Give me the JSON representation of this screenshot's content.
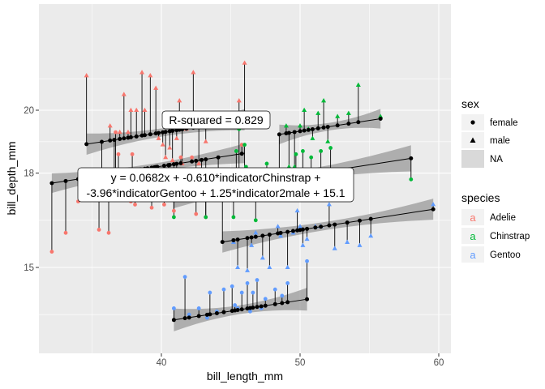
{
  "chart_data": {
    "type": "scatter",
    "xlabel": "bill_length_mm",
    "ylabel": "bill_depth_mm",
    "xlim": [
      31.2,
      60.5
    ],
    "ylim": [
      12.6,
      22.0
    ],
    "x_ticks": [
      40,
      50,
      60
    ],
    "y_ticks": [
      15,
      18,
      20
    ],
    "x_tick_labels": [
      "40",
      "50",
      "60"
    ],
    "y_tick_labels": [
      "15",
      "18",
      "20"
    ],
    "grid": true,
    "annotations": {
      "r_squared": "R-squared = 0.829",
      "equation_line1": "y = 0.0682x + -0.610*indicatorChinstrap +",
      "equation_line2": "-3.96*indicatorGentoo + 1.25*indicator2male + 15.1"
    },
    "legend_sex": {
      "title": "sex",
      "entries": [
        "female",
        "male",
        "NA"
      ]
    },
    "legend_species": {
      "title": "species",
      "entries": [
        {
          "label": "Adelie",
          "color": "#F8766D"
        },
        {
          "label": "Chinstrap",
          "color": "#00BA38"
        },
        {
          "label": "Gentoo",
          "color": "#619CFF"
        }
      ]
    },
    "fit_lines": [
      {
        "name": "Adelie female",
        "x": [
          32.1,
          46.0
        ],
        "y": [
          17.68,
          18.63
        ],
        "se": 0.12
      },
      {
        "name": "Adelie male",
        "x": [
          34.6,
          46.0
        ],
        "y": [
          18.92,
          19.7
        ],
        "se": 0.13
      },
      {
        "name": "Chinstrap female",
        "x": [
          40.9,
          58.0
        ],
        "y": [
          17.3,
          18.47
        ],
        "se": 0.16
      },
      {
        "name": "Chinstrap male",
        "x": [
          48.5,
          55.8
        ],
        "y": [
          19.23,
          19.73
        ],
        "se": 0.12
      },
      {
        "name": "Gentoo female",
        "x": [
          40.9,
          50.5
        ],
        "y": [
          13.33,
          13.99
        ],
        "se": 0.14
      },
      {
        "name": "Gentoo male",
        "x": [
          44.4,
          59.6
        ],
        "y": [
          15.81,
          16.85
        ],
        "se": 0.13
      }
    ],
    "series": [
      {
        "name": "Adelie female",
        "species": "Adelie",
        "sex": "female",
        "points": [
          [
            32.1,
            15.5
          ],
          [
            33.1,
            16.1
          ],
          [
            34.0,
            17.1
          ],
          [
            35.0,
            17.9
          ],
          [
            35.5,
            16.2
          ],
          [
            36.0,
            17.9
          ],
          [
            36.2,
            16.1
          ],
          [
            36.5,
            18.0
          ],
          [
            36.7,
            19.3
          ],
          [
            36.9,
            18.6
          ],
          [
            37.2,
            17.8
          ],
          [
            37.7,
            18.1
          ],
          [
            37.8,
            17.1
          ],
          [
            37.9,
            18.6
          ],
          [
            38.1,
            17.0
          ],
          [
            38.5,
            17.9
          ],
          [
            38.8,
            17.2
          ],
          [
            39.0,
            17.5
          ],
          [
            39.3,
            16.9
          ],
          [
            39.5,
            17.8
          ],
          [
            39.6,
            17.2
          ],
          [
            39.7,
            18.1
          ],
          [
            40.2,
            17.0
          ],
          [
            40.5,
            17.9
          ],
          [
            40.6,
            17.2
          ],
          [
            40.9,
            16.8
          ],
          [
            41.1,
            17.5
          ],
          [
            41.4,
            18.5
          ],
          [
            42.2,
            18.5
          ],
          [
            42.5,
            16.7
          ],
          [
            42.9,
            17.6
          ],
          [
            43.2,
            16.6
          ],
          [
            44.1,
            18.0
          ],
          [
            45.8,
            18.9
          ]
        ]
      },
      {
        "name": "Adelie male",
        "species": "Adelie",
        "sex": "male",
        "points": [
          [
            34.6,
            21.1
          ],
          [
            35.7,
            18.0
          ],
          [
            36.3,
            19.5
          ],
          [
            36.6,
            17.8
          ],
          [
            37.0,
            19.3
          ],
          [
            37.3,
            20.5
          ],
          [
            37.6,
            19.3
          ],
          [
            37.8,
            20.0
          ],
          [
            38.2,
            20.0
          ],
          [
            38.6,
            21.2
          ],
          [
            38.8,
            20.0
          ],
          [
            39.2,
            21.1
          ],
          [
            39.6,
            20.7
          ],
          [
            39.8,
            19.1
          ],
          [
            40.1,
            18.9
          ],
          [
            40.3,
            18.5
          ],
          [
            40.6,
            18.8
          ],
          [
            40.8,
            18.4
          ],
          [
            41.1,
            19.1
          ],
          [
            41.3,
            20.3
          ],
          [
            41.5,
            18.3
          ],
          [
            41.8,
            19.4
          ],
          [
            42.3,
            21.2
          ],
          [
            42.7,
            18.3
          ],
          [
            43.2,
            19.0
          ],
          [
            44.1,
            19.7
          ],
          [
            45.6,
            20.3
          ],
          [
            46.0,
            21.5
          ]
        ]
      },
      {
        "name": "Chinstrap female",
        "species": "Chinstrap",
        "sex": "female",
        "points": [
          [
            40.9,
            16.6
          ],
          [
            42.4,
            17.3
          ],
          [
            42.5,
            17.3
          ],
          [
            43.2,
            16.6
          ],
          [
            45.2,
            16.6
          ],
          [
            45.4,
            18.7
          ],
          [
            45.6,
            19.4
          ],
          [
            45.7,
            17.3
          ],
          [
            46.0,
            18.9
          ],
          [
            46.1,
            18.2
          ],
          [
            46.4,
            17.8
          ],
          [
            46.6,
            17.8
          ],
          [
            46.8,
            16.5
          ],
          [
            47.0,
            17.3
          ],
          [
            47.6,
            18.3
          ],
          [
            49.7,
            18.6
          ],
          [
            50.1,
            17.9
          ],
          [
            50.2,
            18.7
          ],
          [
            50.8,
            18.5
          ],
          [
            51.5,
            18.7
          ],
          [
            52.2,
            18.8
          ],
          [
            58.0,
            17.8
          ]
        ]
      },
      {
        "name": "Chinstrap male",
        "species": "Chinstrap",
        "sex": "male",
        "points": [
          [
            48.5,
            17.5
          ],
          [
            49.0,
            19.5
          ],
          [
            49.2,
            18.2
          ],
          [
            49.6,
            18.2
          ],
          [
            50.0,
            19.5
          ],
          [
            50.3,
            20.0
          ],
          [
            50.6,
            19.4
          ],
          [
            50.9,
            19.1
          ],
          [
            51.3,
            19.9
          ],
          [
            51.7,
            20.3
          ],
          [
            52.0,
            19.0
          ],
          [
            52.7,
            19.8
          ],
          [
            53.5,
            19.9
          ],
          [
            54.2,
            20.8
          ],
          [
            55.8,
            19.8
          ]
        ]
      },
      {
        "name": "Gentoo female",
        "species": "Gentoo",
        "sex": "female",
        "points": [
          [
            40.9,
            13.7
          ],
          [
            41.7,
            14.7
          ],
          [
            42.0,
            13.5
          ],
          [
            42.7,
            13.7
          ],
          [
            43.3,
            13.4
          ],
          [
            43.5,
            14.2
          ],
          [
            44.0,
            13.6
          ],
          [
            44.5,
            14.3
          ],
          [
            45.1,
            14.4
          ],
          [
            45.3,
            13.8
          ],
          [
            45.5,
            13.7
          ],
          [
            45.8,
            14.2
          ],
          [
            46.2,
            14.5
          ],
          [
            46.4,
            13.6
          ],
          [
            46.6,
            14.2
          ],
          [
            46.9,
            14.6
          ],
          [
            47.2,
            13.7
          ],
          [
            47.5,
            14.0
          ],
          [
            48.2,
            14.3
          ],
          [
            48.7,
            14.1
          ],
          [
            49.1,
            14.5
          ],
          [
            50.5,
            15.2
          ]
        ]
      },
      {
        "name": "Gentoo male",
        "species": "Gentoo",
        "sex": "male",
        "points": [
          [
            44.4,
            17.3
          ],
          [
            45.2,
            15.8
          ],
          [
            45.5,
            15.0
          ],
          [
            46.2,
            14.9
          ],
          [
            46.5,
            15.7
          ],
          [
            46.8,
            16.1
          ],
          [
            47.3,
            15.3
          ],
          [
            47.8,
            15.0
          ],
          [
            48.4,
            16.3
          ],
          [
            48.6,
            16.0
          ],
          [
            49.1,
            15.0
          ],
          [
            49.5,
            16.1
          ],
          [
            49.8,
            16.8
          ],
          [
            50.0,
            16.3
          ],
          [
            50.2,
            15.7
          ],
          [
            50.5,
            15.9
          ],
          [
            51.1,
            16.3
          ],
          [
            51.5,
            16.3
          ],
          [
            52.1,
            17.0
          ],
          [
            52.5,
            15.6
          ],
          [
            53.4,
            15.8
          ],
          [
            54.3,
            15.7
          ],
          [
            55.1,
            16.0
          ],
          [
            59.6,
            17.0
          ]
        ]
      }
    ]
  }
}
